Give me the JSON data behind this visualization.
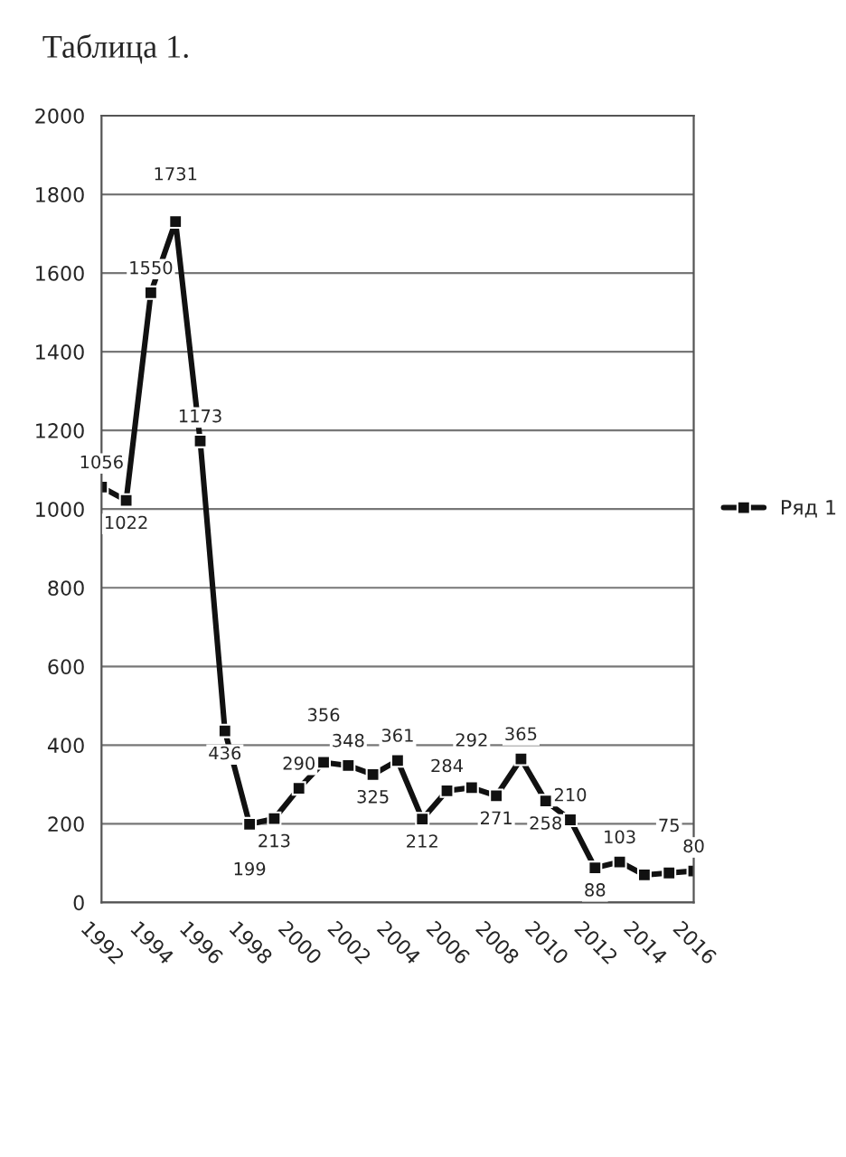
{
  "chart_data": {
    "type": "line",
    "title": "Таблица 1.",
    "x": [
      1992,
      1993,
      1994,
      1995,
      1996,
      1997,
      1998,
      1999,
      2000,
      2001,
      2002,
      2003,
      2004,
      2005,
      2006,
      2007,
      2008,
      2009,
      2010,
      2011,
      2012,
      2013,
      2014,
      2015,
      2016
    ],
    "series": [
      {
        "name": "Ряд 1",
        "color": "#111111",
        "marker": "square",
        "line_style": "solid",
        "values": [
          1056,
          1022,
          1550,
          1731,
          1173,
          436,
          199,
          213,
          290,
          356,
          348,
          325,
          361,
          212,
          284,
          292,
          271,
          365,
          258,
          210,
          88,
          103,
          70,
          75,
          80
        ],
        "value_labels": [
          "1056",
          "1022",
          "1550",
          "1731",
          "1173",
          "436",
          "199",
          "213",
          "290",
          "356",
          "348",
          "325",
          "361",
          "212",
          "284",
          "292",
          "271",
          "365",
          "258",
          "210",
          "88",
          "103",
          null,
          "75",
          "80"
        ]
      }
    ],
    "xlim": [
      1992,
      2016
    ],
    "xticks": [
      1992,
      1994,
      1996,
      1998,
      2000,
      2002,
      2004,
      2006,
      2008,
      2010,
      2012,
      2014,
      2016
    ],
    "ylim": [
      0,
      2000
    ],
    "yticks": [
      0,
      200,
      400,
      600,
      800,
      1000,
      1200,
      1400,
      1600,
      1800,
      2000
    ],
    "grid": "y",
    "legend": "right"
  }
}
